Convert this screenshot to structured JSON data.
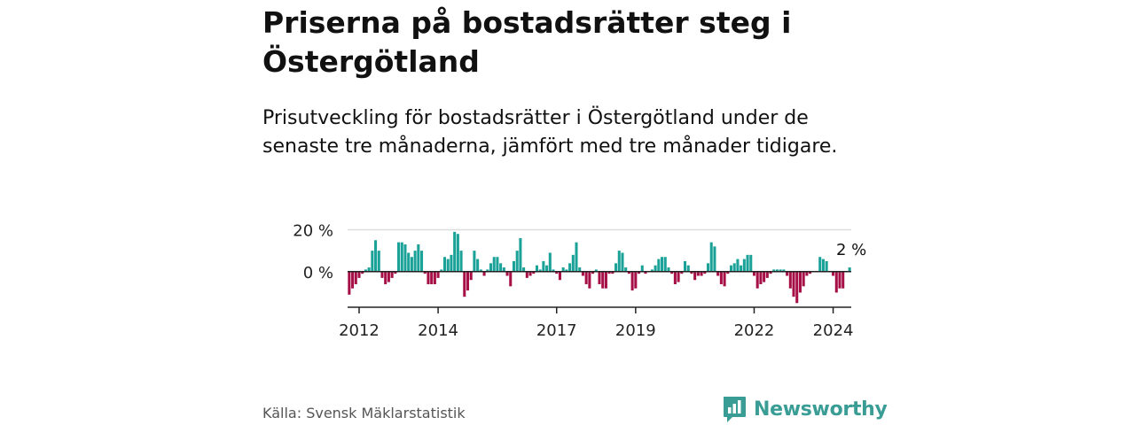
{
  "header": {
    "title": "Priserna på bostadsrätter steg i Östergötland",
    "subtitle": "Prisutveckling för bostadsrätter i Östergötland under de senaste tre månaderna, jämfört med tre månader tidigare."
  },
  "footer": {
    "source": "Källa: Svensk Mäklarstatistik",
    "brand": "Newsworthy"
  },
  "colors": {
    "positive": "#1aa198",
    "negative": "#a50f45",
    "grid": "#dddddd",
    "axis": "#222222"
  },
  "chart_data": {
    "type": "bar",
    "title": "Priserna på bostadsrätter steg i Östergötland",
    "ylabel": "",
    "xlabel": "",
    "unit": "%",
    "ylim": [
      -17,
      24
    ],
    "yticks": [
      0,
      20
    ],
    "ytick_labels": [
      "0 %",
      "20 %"
    ],
    "x_start": "2011-10",
    "frequency": "monthly",
    "xticks": [
      "2012",
      "2014",
      "2017",
      "2019",
      "2022",
      "2024"
    ],
    "xtick_months": [
      3,
      27,
      63,
      87,
      123,
      147
    ],
    "annotation": {
      "text": "2 %",
      "value": 2,
      "label": "last"
    },
    "values": [
      -11,
      -8,
      -6,
      -3,
      -1,
      1,
      2,
      10,
      15,
      10,
      -3,
      -6,
      -5,
      -3,
      -1,
      14,
      14,
      13,
      9,
      7,
      10,
      13,
      10,
      -1,
      -6,
      -6,
      -6,
      -3,
      1,
      7,
      6,
      8,
      19,
      18,
      10,
      -12,
      -9,
      -4,
      10,
      6,
      1,
      -2,
      1,
      4,
      7,
      7,
      4,
      2,
      -2,
      -7,
      5,
      10,
      16,
      2,
      -3,
      -2,
      -1,
      3,
      1,
      5,
      3,
      9,
      1,
      -1,
      -4,
      2,
      1,
      4,
      8,
      14,
      2,
      -2,
      -6,
      -8,
      -1,
      1,
      -6,
      -8,
      -8,
      -1,
      -1,
      4,
      10,
      9,
      2,
      -1,
      -9,
      -8,
      -1,
      3,
      -1,
      0,
      1,
      3,
      6,
      7,
      7,
      2,
      -1,
      -6,
      -5,
      -1,
      5,
      3,
      -1,
      -4,
      -2,
      -2,
      -1,
      4,
      14,
      12,
      -2,
      -6,
      -7,
      -1,
      3,
      4,
      6,
      3,
      6,
      8,
      8,
      -2,
      -8,
      -6,
      -5,
      -3,
      -1,
      1,
      1,
      1,
      1,
      -2,
      -8,
      -12,
      -15,
      -10,
      -7,
      -2,
      -1,
      0,
      0,
      7,
      6,
      5,
      0,
      -2,
      -10,
      -8,
      -8,
      0,
      2
    ]
  }
}
